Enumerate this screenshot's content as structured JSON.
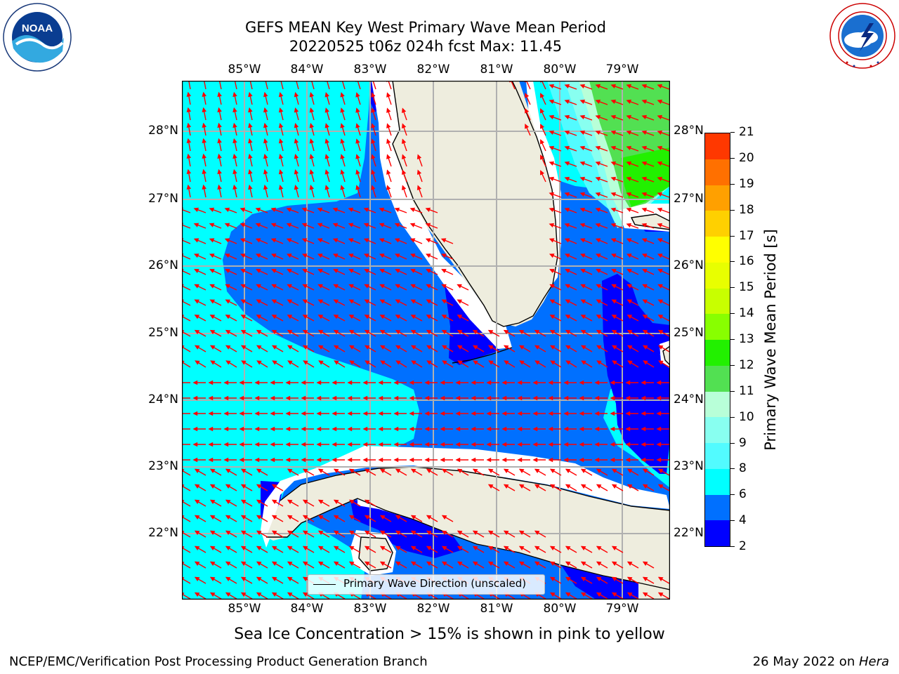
{
  "header": {
    "title_line1": "GEFS MEAN Key West Primary Wave Mean Period",
    "title_line2": "20220525 t06z 024h fcst   Max: 11.45"
  },
  "logos": {
    "noaa": {
      "text": "NOAA",
      "ring_text": "NATIONAL OCEANIC AND ATMOSPHERIC ADMINISTRATION · U.S. DEPARTMENT OF COMMERCE"
    },
    "nws": {
      "ring_text": "NATIONAL WEATHER SERVICE"
    }
  },
  "map": {
    "lon_labels": [
      "85°W",
      "84°W",
      "83°W",
      "82°W",
      "81°W",
      "80°W",
      "79°W"
    ],
    "lat_labels": [
      "28°N",
      "27°N",
      "26°N",
      "25°N",
      "24°N",
      "23°N",
      "22°N"
    ],
    "legend_label": "Primary Wave Direction (unscaled)",
    "arrow_color": "#ff0000",
    "land_color": "#eeedde"
  },
  "colorbar": {
    "label": "Primary Wave Mean Period [s]",
    "ticks": [
      "2",
      "4",
      "6",
      "8",
      "9",
      "10",
      "11",
      "12",
      "13",
      "14",
      "15",
      "16",
      "17",
      "18",
      "19",
      "20",
      "21"
    ],
    "colors": [
      "#0000ff",
      "#0070ff",
      "#00ffff",
      "#52fbff",
      "#88fff0",
      "#b8ffd8",
      "#52e052",
      "#22f000",
      "#88ff00",
      "#c8ff00",
      "#e8ff00",
      "#ffff00",
      "#ffd000",
      "#ffa000",
      "#ff7000",
      "#ff3800",
      "#ff0000"
    ]
  },
  "notes": {
    "sea_ice": "Sea Ice Concentration > 15% is shown in pink to yellow",
    "credit": "NCEP/EMC/Verification Post Processing Product Generation Branch",
    "date_prefix": "26 May 2022 on ",
    "date_machine": "Hera"
  }
}
